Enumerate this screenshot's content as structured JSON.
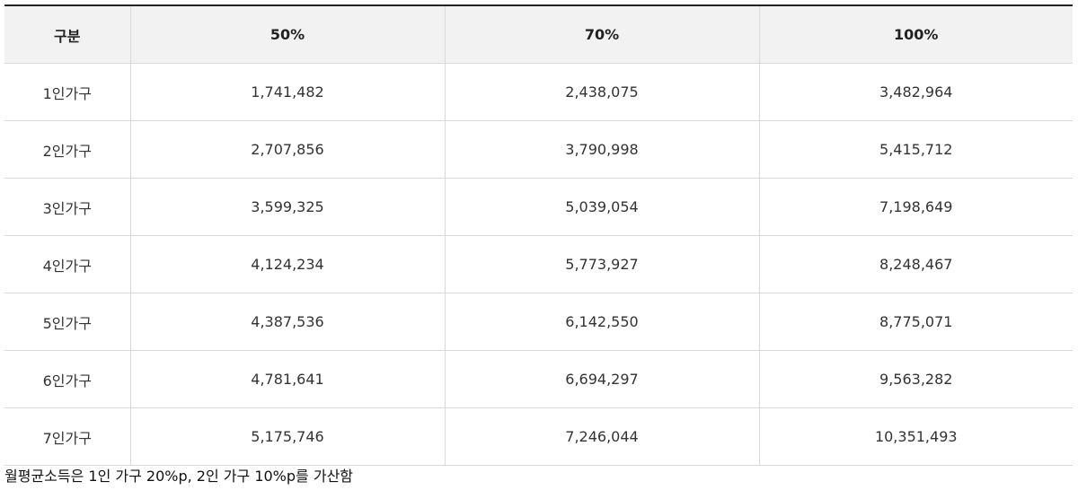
{
  "table": {
    "headers": [
      "구분",
      "50%",
      "70%",
      "100%"
    ],
    "rows": [
      [
        "1인가구",
        "1,741,482",
        "2,438,075",
        "3,482,964"
      ],
      [
        "2인가구",
        "2,707,856",
        "3,790,998",
        "5,415,712"
      ],
      [
        "3인가구",
        "3,599,325",
        "5,039,054",
        "7,198,649"
      ],
      [
        "4인가구",
        "4,124,234",
        "5,773,927",
        "8,248,467"
      ],
      [
        "5인가구",
        "4,387,536",
        "6,142,550",
        "8,775,071"
      ],
      [
        "6인가구",
        "4,781,641",
        "6,694,297",
        "9,563,282"
      ],
      [
        "7인가구",
        "5,175,746",
        "7,246,044",
        "10,351,493"
      ]
    ]
  },
  "note": "월평균소득은 1인 가구 20%p, 2인 가구 10%p를 가산함",
  "colors": {
    "header_bg": "#f2f2f2",
    "top_border": "#222222",
    "grid_border": "#d9d9d9"
  }
}
